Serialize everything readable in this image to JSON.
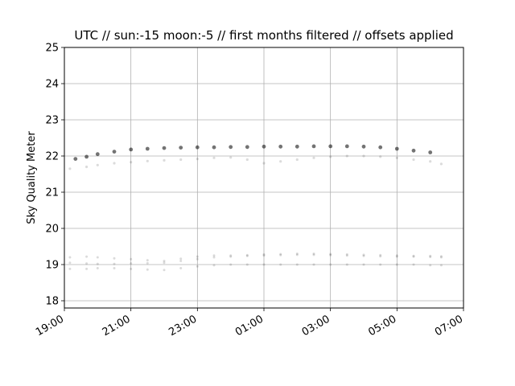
{
  "chart_data": {
    "type": "scatter",
    "title": "UTC // sun:-15 moon:-5 // first months filtered // offsets applied",
    "xlabel": "",
    "ylabel": "Sky Quality Meter",
    "ylim": [
      17.8,
      25
    ],
    "yticks": [
      "18",
      "19",
      "20",
      "21",
      "22",
      "23",
      "24",
      "25"
    ],
    "xlim": [
      "19:00",
      "07:00"
    ],
    "xticks": [
      "19:00",
      "21:00",
      "23:00",
      "01:00",
      "03:00",
      "05:00",
      "07:00"
    ],
    "grid": true,
    "marker_color": "#000000",
    "series": [
      {
        "x": [
          "19:20",
          "19:40",
          "20:00",
          "20:30",
          "21:00",
          "21:30",
          "22:00",
          "22:30",
          "23:00",
          "23:30",
          "00:00",
          "00:30",
          "01:00",
          "01:30",
          "02:00",
          "02:30",
          "03:00",
          "03:30",
          "04:00",
          "04:30",
          "05:00",
          "05:30",
          "06:00"
        ],
        "values": [
          21.92,
          21.98,
          22.05,
          22.12,
          22.18,
          22.2,
          22.22,
          22.23,
          22.24,
          22.24,
          22.25,
          22.25,
          22.26,
          22.26,
          22.26,
          22.27,
          22.27,
          22.27,
          22.26,
          22.24,
          22.2,
          22.15,
          22.1
        ]
      },
      {
        "x": [
          "19:10",
          "19:40",
          "20:00",
          "20:30",
          "21:00",
          "21:30",
          "22:00",
          "22:30",
          "23:00",
          "23:30",
          "00:00",
          "00:30",
          "01:00",
          "01:30",
          "02:00",
          "02:30",
          "03:00",
          "03:30",
          "04:00",
          "04:30",
          "05:00",
          "05:30",
          "06:00",
          "06:20"
        ],
        "values": [
          21.65,
          21.7,
          21.75,
          21.8,
          21.83,
          21.86,
          21.88,
          21.9,
          21.92,
          21.95,
          21.96,
          21.9,
          21.8,
          21.85,
          21.9,
          21.95,
          21.98,
          22.0,
          22.0,
          21.98,
          21.95,
          21.9,
          21.85,
          21.78
        ]
      },
      {
        "x": [
          "19:10",
          "19:40",
          "20:00",
          "20:30",
          "21:00",
          "21:30",
          "22:00",
          "22:30",
          "23:00",
          "23:30",
          "00:00",
          "00:30",
          "01:00",
          "01:30",
          "02:00",
          "02:30",
          "03:00",
          "03:30",
          "04:00",
          "04:30",
          "05:00",
          "05:30",
          "06:00",
          "06:20"
        ],
        "values": [
          19.2,
          19.22,
          19.2,
          19.17,
          19.15,
          19.12,
          19.1,
          19.16,
          19.22,
          19.25,
          19.25,
          19.26,
          19.28,
          19.29,
          19.3,
          19.3,
          19.29,
          19.28,
          19.27,
          19.26,
          19.25,
          19.24,
          19.24,
          19.23
        ]
      },
      {
        "x": [
          "19:10",
          "19:40",
          "20:00",
          "20:30",
          "21:00",
          "21:30",
          "22:00",
          "22:30",
          "23:00",
          "23:30",
          "00:00",
          "00:30",
          "01:00",
          "01:30",
          "02:00",
          "02:30",
          "03:00",
          "03:30",
          "04:00",
          "04:30",
          "05:00",
          "05:30",
          "06:00",
          "06:20"
        ],
        "values": [
          19.05,
          19.03,
          19.02,
          19.02,
          19.03,
          19.04,
          19.05,
          19.1,
          19.15,
          19.2,
          19.22,
          19.24,
          19.25,
          19.26,
          19.27,
          19.27,
          19.26,
          19.25,
          19.24,
          19.23,
          19.22,
          19.22,
          19.21,
          19.2
        ]
      },
      {
        "x": [
          "19:10",
          "19:40",
          "20:00",
          "20:30",
          "21:00",
          "21:30",
          "22:00",
          "22:30",
          "23:00",
          "23:30",
          "00:00",
          "00:30",
          "01:00",
          "01:30",
          "02:00",
          "02:30",
          "03:00",
          "03:30",
          "04:00",
          "04:30",
          "05:00",
          "05:30",
          "06:00",
          "06:20"
        ],
        "values": [
          18.88,
          18.88,
          18.9,
          18.9,
          18.88,
          18.86,
          18.85,
          18.9,
          18.95,
          18.98,
          19.0,
          19.0,
          19.0,
          19.0,
          19.0,
          19.0,
          19.0,
          19.0,
          19.0,
          19.0,
          19.0,
          19.0,
          18.98,
          18.98
        ]
      }
    ]
  }
}
